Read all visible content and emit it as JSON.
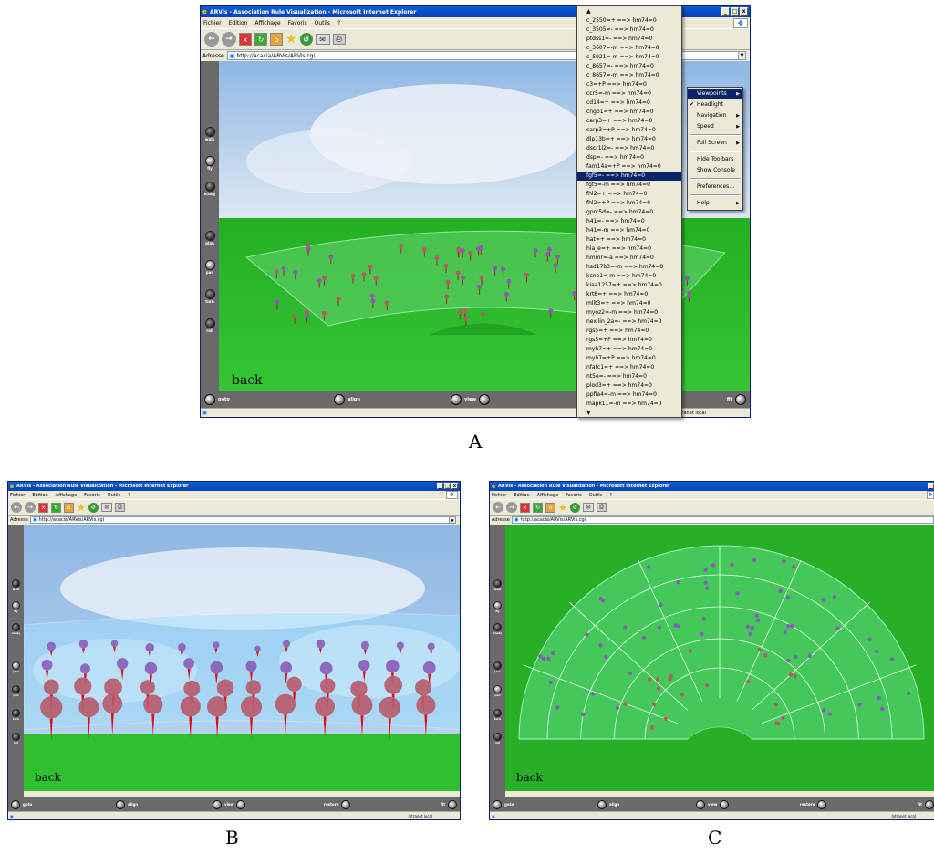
{
  "captions": {
    "a": "A",
    "b": "B",
    "c": "C"
  },
  "browser": {
    "title": "ARVis - Association Rule Visualization - Microsoft Internet Explorer",
    "menu": [
      "Fichier",
      "Edition",
      "Affichage",
      "Favoris",
      "Outils",
      "?"
    ],
    "address_label": "Adresse",
    "url": "http://acacia/ARVis/ARVis.cgi",
    "status_zone": "Intranet local",
    "status_zone_truncated": "tranet local",
    "win_min": "_",
    "win_max": "□",
    "win_close": "x"
  },
  "viewer": {
    "nav_left": [
      {
        "id": "walk",
        "label": "walk"
      },
      {
        "id": "fly",
        "label": "fly"
      },
      {
        "id": "study",
        "label": "study"
      },
      {
        "id": "plan",
        "label": "plan"
      },
      {
        "id": "pan",
        "label": "pan"
      },
      {
        "id": "turn",
        "label": "turn"
      },
      {
        "id": "roll",
        "label": "roll"
      }
    ],
    "bottom": {
      "goto": "goto",
      "align": "align",
      "view": "view",
      "restore": "restore",
      "fit": "fit"
    },
    "back_label": "back"
  },
  "rule_dropdown": {
    "items": [
      "c_2550=+ ==> hm74=0",
      "c_3505=- ==> hm74=0",
      "ptdss1=- ==> hm74=0",
      "c_3607=-m ==> hm74=0",
      "c_5921=-m ==> hm74=0",
      "c_8657=- ==> hm74=0",
      "c_8657=-m ==> hm74=0",
      "c3=+P ==> hm74=0",
      "ccr5=-m ==> hm74=0",
      "cd14=+ ==> hm74=0",
      "cngb1=+ ==> hm74=0",
      "carp3=+ ==> hm74=0",
      "carp3=+P ==> hm74=0",
      "dlp13b=+ ==> hm74=0",
      "dscr1l2=- ==> hm74=0",
      "dsp=- ==> hm74=0",
      "fam14a=+P ==> hm74=0",
      "fgf5=- ==> hm74=0",
      "fgf5=-m ==> hm74=0",
      "fhl2=+ ==> hm74=0",
      "fhl2=+P ==> hm74=0",
      "gprc5d=- ==> hm74=0",
      "h41=- ==> hm74=0",
      "h41=-m ==> hm74=0",
      "hat=+ ==> hm74=0",
      "hla_e=+ ==> hm74=0",
      "hmmr=-a ==> hm74=0",
      "hsd17b3=-m ==> hm74=0",
      "kcne1=-m ==> hm74=0",
      "kiaa1257=+ ==> hm74=0",
      "krt8=+ ==> hm74=0",
      "mllt3=+ ==> hm74=0",
      "myoz2=-m ==> hm74=0",
      "nexilin_2a=- ==> hm74=0",
      "rgs5=+ ==> hm74=0",
      "rgs5=+P ==> hm74=0",
      "myh7=+ ==> hm74=0",
      "myh7=+P ==> hm74=0",
      "nfatc1=+ ==> hm74=0",
      "nt5e=- ==> hm74=0",
      "plod3=+ ==> hm74=0",
      "ppfia4=-m ==> hm74=0",
      "mapk11=-m ==> hm74=0"
    ],
    "selected_index": 17,
    "up_arrow": "▲",
    "down_arrow": "▼"
  },
  "context_menu": {
    "items": [
      {
        "label": "Viewpoints",
        "submenu": true,
        "selected": true
      },
      {
        "label": "Headlight",
        "checked": true
      },
      {
        "label": "Navigation",
        "submenu": true
      },
      {
        "label": "Speed",
        "submenu": true
      },
      {
        "sep": true
      },
      {
        "label": "Full Screen",
        "submenu": true
      },
      {
        "sep": true
      },
      {
        "label": "Hide Toolbars"
      },
      {
        "label": "Show Console"
      },
      {
        "sep": true
      },
      {
        "label": "Preferences..."
      },
      {
        "sep": true
      },
      {
        "label": "Help",
        "submenu": true
      }
    ],
    "check_mark": "✔"
  },
  "colors": {
    "sky": "#8fb7e4",
    "grass": "#2fbf2f",
    "grass_dark": "#239a23",
    "sphere_red": "#b85a6a",
    "sphere_purple": "#8a5cb8",
    "panel": "#6a6a6a"
  }
}
